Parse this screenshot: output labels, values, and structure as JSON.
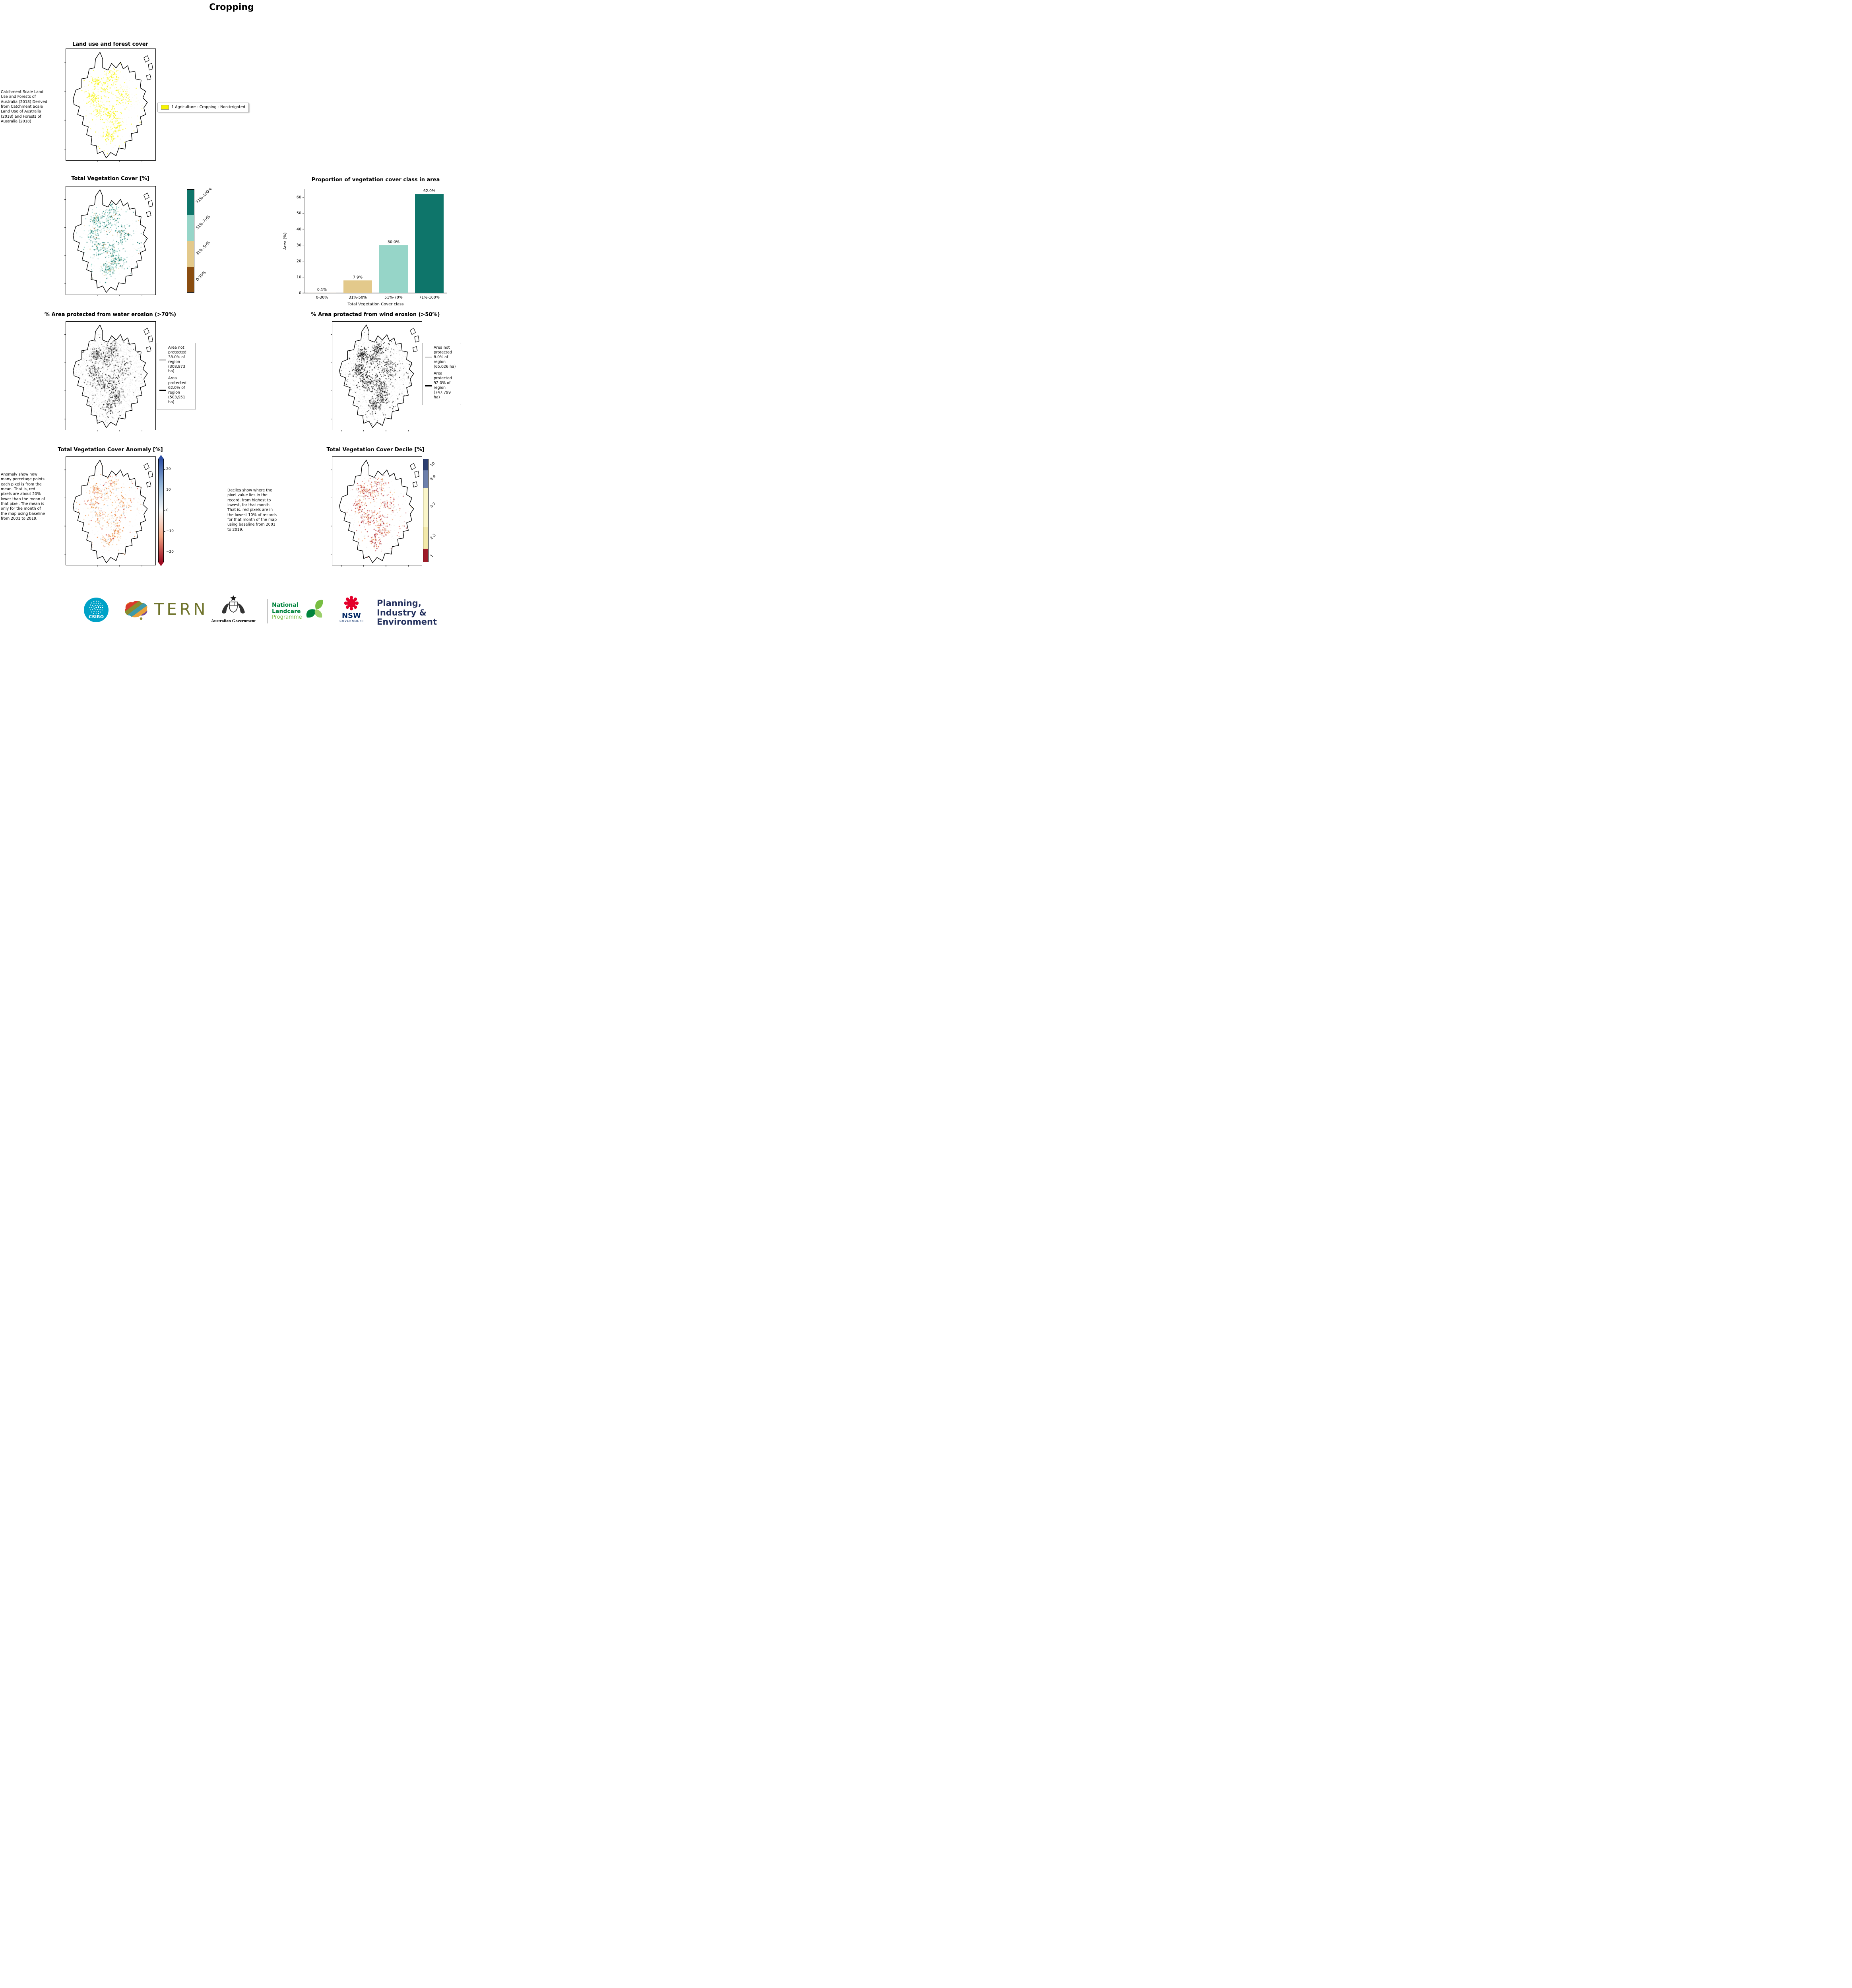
{
  "page": {
    "title": "Cropping"
  },
  "panels": {
    "landuse": {
      "title": "Land use and forest cover",
      "note": "Catchment Scale Land Use and Forests of Australia (2018) Derived from Catchment Scale Land Use of Australia (2018) and Forests of Australia (2018)",
      "legend": [
        {
          "label": "1 Agriculture - Cropping - Non-irrigated",
          "color": "#f7f400"
        }
      ]
    },
    "tvc": {
      "title": "Total Vegetation Cover [%]",
      "colorbar": [
        {
          "label": "71%-100%",
          "color": "#0e756a"
        },
        {
          "label": "51%-70%",
          "color": "#96d5c8"
        },
        {
          "label": "31%-50%",
          "color": "#e3c98b"
        },
        {
          "label": "0-30%",
          "color": "#8a4d10"
        }
      ]
    },
    "water": {
      "title": "% Area protected from water erosion (>70%)",
      "legend": [
        {
          "label": "Area not protected 38.0% of region (308,873 ha)",
          "color": "#cfcfcf"
        },
        {
          "label": "Area protected 62.0% of region (503,951 ha)",
          "color": "#000000"
        }
      ]
    },
    "wind": {
      "title": "% Area protected from wind erosion (>50%)",
      "legend": [
        {
          "label": "Area not protected 8.0% of region (65,026 ha)",
          "color": "#cfcfcf"
        },
        {
          "label": "Area protected 92.0% of region (747,799 ha)",
          "color": "#000000"
        }
      ]
    },
    "anomaly": {
      "title": "Total Vegetation Cover Anomaly [%]",
      "note": "Anomaly show how many percetage points each pixel is from the mean. That is, red pixels are about 20% lower than the mean of that pixel. The mean is only for the month of the map using baseline from 2001 to 2019.",
      "colorbar": {
        "ticks": [
          20,
          10,
          0,
          -10,
          -20
        ],
        "range": [
          -25,
          25
        ],
        "colors_top_to_bottom": [
          "#2c4ea3",
          "#92b4d7",
          "#f7f7f7",
          "#f4a582",
          "#9e0d22"
        ]
      }
    },
    "decile": {
      "title": "Total Vegetation Cover Decile [%]",
      "note": "Deciles show where the pixel value lies in the record, from highest to lowest, for that month. That is, red pixels are in the lowest 10% of records for that month of the map using baseline from 2001 to 2019.",
      "colorbar": [
        {
          "label": "10",
          "color": "#2c3e70",
          "frac": 0.11
        },
        {
          "label": "8-9",
          "color": "#6d80ab",
          "frac": 0.17
        },
        {
          "label": "4-7",
          "color": "#fbf6c8",
          "frac": 0.38
        },
        {
          "label": "2-3",
          "color": "#f3e9a9",
          "frac": 0.21
        },
        {
          "label": "1",
          "color": "#9f1b28",
          "frac": 0.13
        }
      ]
    }
  },
  "chart_data": {
    "type": "bar",
    "title": "Proportion of vegetation cover class in area",
    "categories": [
      "0-30%",
      "31%-50%",
      "51%-70%",
      "71%-100%"
    ],
    "values": [
      0.1,
      7.9,
      30.0,
      62.0
    ],
    "bar_labels": [
      "0.1%",
      "7.9%",
      "30.0%",
      "62.0%"
    ],
    "bar_colors": [
      "#7a4a10",
      "#e3c98b",
      "#96d5c8",
      "#0e756a"
    ],
    "xlabel": "Total Vegetation Cover class",
    "ylabel": "Area (%)",
    "ylim": [
      0,
      65
    ],
    "yticks": [
      0,
      10,
      20,
      30,
      40,
      50,
      60
    ],
    "legend_position": "none",
    "grid": false
  },
  "footer": {
    "csiro": "CSIRO",
    "tern": "TERN",
    "aus_gov": "Australian Government",
    "landcare_line1": "National",
    "landcare_line2": "Landcare",
    "landcare_line3": "Programme",
    "nsw": "NSW",
    "nsw_sub": "GOVERNMENT",
    "dpie_line1": "Planning,",
    "dpie_line2": "Industry &",
    "dpie_line3": "Environment"
  }
}
